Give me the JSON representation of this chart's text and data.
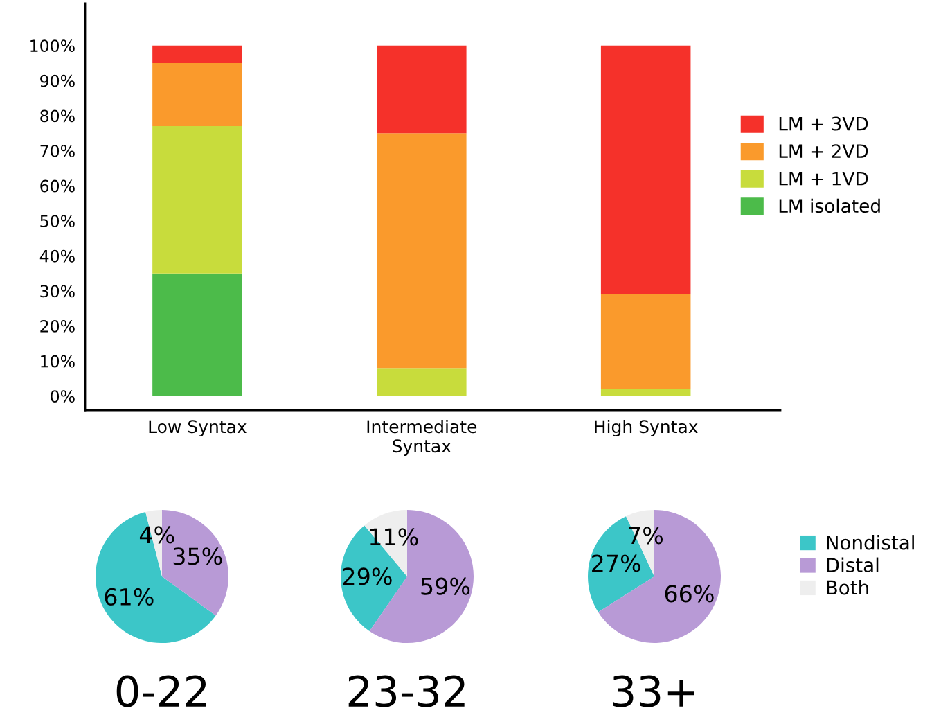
{
  "chart_data": [
    {
      "type": "bar",
      "stacked": true,
      "categories": [
        "Low Syntax",
        "Intermediate\nSyntax",
        "High Syntax"
      ],
      "series": [
        {
          "name": "LM isolated",
          "color": "#4cbb4a",
          "values": [
            35,
            0,
            0
          ]
        },
        {
          "name": "LM + 1VD",
          "color": "#c8dc3c",
          "values": [
            42,
            8,
            2
          ]
        },
        {
          "name": "LM + 2VD",
          "color": "#fa9a2c",
          "values": [
            18,
            67,
            27
          ]
        },
        {
          "name": "LM + 3VD",
          "color": "#f5312a",
          "values": [
            5,
            25,
            71
          ]
        }
      ],
      "ylim": [
        -4,
        112
      ],
      "yticks": [
        {
          "value": 0,
          "label": "0%"
        },
        {
          "value": 10,
          "label": "10%"
        },
        {
          "value": 20,
          "label": "20%"
        },
        {
          "value": 30,
          "label": "30%"
        },
        {
          "value": 40,
          "label": "40%"
        },
        {
          "value": 50,
          "label": "50%"
        },
        {
          "value": 60,
          "label": "60%"
        },
        {
          "value": 70,
          "label": "70%"
        },
        {
          "value": 80,
          "label": "80%"
        },
        {
          "value": 90,
          "label": "90%"
        },
        {
          "value": 100,
          "label": "100%"
        }
      ],
      "grid": false,
      "legend": "right"
    },
    {
      "type": "pie",
      "title": "0-22",
      "categories": [
        "Nondistal",
        "Distal",
        "Both"
      ],
      "values": [
        61,
        35,
        4
      ],
      "colors": [
        "#3cc6c8",
        "#b89ad6",
        "#eeeeee"
      ],
      "value_labels": [
        "61%",
        "35%",
        "4%"
      ],
      "legend": "right"
    },
    {
      "type": "pie",
      "title": "23-32",
      "categories": [
        null,
        null,
        null
      ],
      "values": [
        29,
        59,
        11
      ],
      "colors": [
        "#3cc6c8",
        "#b89ad6",
        "#eeeeee"
      ],
      "value_labels": [
        "29%",
        "59%",
        "11%"
      ]
    },
    {
      "type": "pie",
      "title": "33+",
      "categories": [
        null,
        null,
        null
      ],
      "values": [
        27,
        66,
        7
      ],
      "colors": [
        "#3cc6c8",
        "#b89ad6",
        "#eeeeee"
      ],
      "value_labels": [
        "27%",
        "66%",
        "7%"
      ]
    }
  ]
}
